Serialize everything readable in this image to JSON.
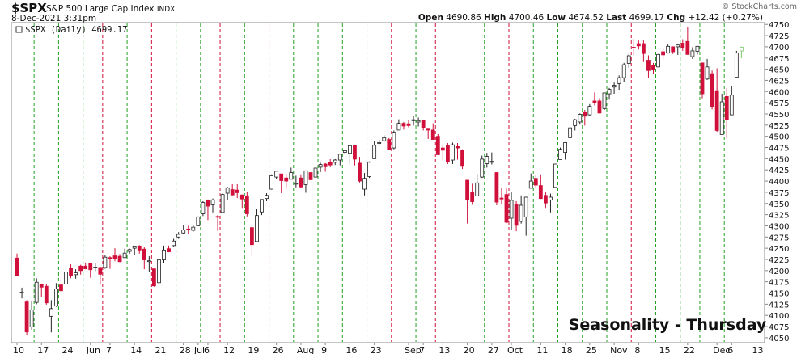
{
  "chart_data": {
    "type": "candlestick",
    "title": "$SPX",
    "subtitle": "S&P 500 Large Cap Index",
    "exchange": "INDX",
    "date": "8-Dec-2021 3:31pm",
    "credit": "© StockCharts.com",
    "quote_labels": {
      "open": "Open",
      "high": "High",
      "low": "Low",
      "last": "Last",
      "chg": "Chg"
    },
    "change": "+12.42 (+0.27%)",
    "legend_label": "$SPX (Daily)",
    "annotation": "Seasonality - Thursday",
    "annotation_color": "#1a1ad8",
    "up_color": "#ffffff",
    "down_color": "#d0103a",
    "last_color": "#7cc86a",
    "grid": false,
    "ylim": [
      4039,
      4754
    ],
    "yticks": [
      4050,
      4075,
      4100,
      4125,
      4150,
      4175,
      4200,
      4225,
      4250,
      4275,
      4300,
      4325,
      4350,
      4375,
      4400,
      4425,
      4450,
      4475,
      4500,
      4525,
      4550,
      4575,
      4600,
      4625,
      4650,
      4675,
      4700,
      4725,
      4750
    ],
    "categories": [
      "10",
      null,
      null,
      null,
      null,
      "17",
      null,
      null,
      null,
      null,
      "24",
      null,
      null,
      null,
      null,
      "Jun",
      null,
      null,
      null,
      "7",
      null,
      null,
      null,
      null,
      "14",
      null,
      null,
      null,
      null,
      "21",
      null,
      null,
      null,
      null,
      "28",
      null,
      null,
      "Jul",
      null,
      "6",
      null,
      null,
      null,
      "12",
      null,
      null,
      null,
      null,
      "19",
      null,
      null,
      null,
      null,
      "26",
      null,
      null,
      null,
      null,
      "Aug",
      null,
      null,
      null,
      null,
      "9",
      null,
      null,
      null,
      null,
      "16",
      null,
      null,
      null,
      null,
      "23",
      null,
      null,
      null,
      null,
      null,
      null,
      "Sep",
      null,
      null,
      "7",
      null,
      null,
      null,
      "13",
      null,
      null,
      null,
      null,
      "20",
      null,
      null,
      null,
      null,
      "27",
      null,
      null,
      null,
      "Oct",
      null,
      null,
      null,
      null,
      null,
      "11",
      null,
      null,
      null,
      null,
      "18",
      null,
      null,
      null,
      null,
      "25",
      null,
      null,
      null,
      null,
      "Nov",
      null,
      null,
      null,
      null,
      "8",
      null,
      null,
      null,
      null,
      "15",
      null,
      null,
      null,
      null,
      "22",
      null,
      null,
      null,
      null,
      null,
      "Dec",
      null,
      null,
      "6",
      null,
      null,
      null,
      null,
      "13"
    ],
    "open": [
      4228,
      4150,
      4130,
      4074,
      4129,
      4169,
      4165,
      4098,
      4121,
      4168,
      4170,
      4205,
      4191,
      4210,
      4210,
      4216,
      4207,
      4207,
      4207,
      4229,
      4233,
      4232,
      4229,
      4243,
      4250,
      4255,
      4248,
      4220,
      4204,
      4173,
      4224,
      4249,
      4256,
      4275,
      4284,
      4293,
      4290,
      4300,
      4327,
      4357,
      4347,
      4321,
      4330,
      4373,
      4381,
      4380,
      4369,
      4367,
      4296,
      4265,
      4331,
      4361,
      4382,
      4409,
      4416,
      4407,
      4404,
      4395,
      4407,
      4392,
      4419,
      4409,
      4431,
      4438,
      4442,
      4442,
      4447,
      4464,
      4462,
      4480,
      4440,
      4382,
      4410,
      4450,
      4484,
      4490,
      4493,
      4474,
      4514,
      4529,
      4528,
      4535,
      4532,
      4535,
      4518,
      4514,
      4500,
      4474,
      4479,
      4447,
      4477,
      4469,
      4402,
      4374,
      4367,
      4409,
      4439,
      4442,
      4419,
      4362,
      4370,
      4317,
      4348,
      4310,
      4320,
      4384,
      4406,
      4390,
      4368,
      4358,
      4386,
      4448,
      4464,
      4497,
      4524,
      4532,
      4553,
      4548,
      4579,
      4579,
      4562,
      4595,
      4610,
      4618,
      4631,
      4663,
      4699,
      4707,
      4707,
      4670,
      4659,
      4655,
      4689,
      4686,
      4700,
      4700,
      4708,
      4712,
      4678,
      4690,
      4664,
      4628,
      4640,
      4602,
      4504,
      4589,
      4548,
      4632,
      4690.86,
      null,
      null,
      null
    ],
    "high": [
      4238,
      4162,
      4134,
      4131,
      4183,
      4171,
      4170,
      4134,
      4172,
      4188,
      4209,
      4214,
      4203,
      4213,
      4218,
      4218,
      4216,
      4209,
      4234,
      4232,
      4250,
      4237,
      4249,
      4249,
      4255,
      4257,
      4252,
      4232,
      4204,
      4226,
      4256,
      4256,
      4271,
      4286,
      4301,
      4300,
      4302,
      4321,
      4355,
      4359,
      4361,
      4324,
      4372,
      4387,
      4393,
      4393,
      4370,
      4376,
      4301,
      4337,
      4359,
      4373,
      4415,
      4422,
      4416,
      4416,
      4430,
      4412,
      4415,
      4423,
      4420,
      4430,
      4441,
      4440,
      4449,
      4449,
      4461,
      4469,
      4480,
      4480,
      4454,
      4418,
      4444,
      4489,
      4493,
      4502,
      4496,
      4513,
      4538,
      4532,
      4537,
      4545,
      4542,
      4536,
      4518,
      4529,
      4505,
      4481,
      4485,
      4486,
      4485,
      4471,
      4402,
      4394,
      4416,
      4457,
      4463,
      4464,
      4420,
      4385,
      4383,
      4376,
      4355,
      4368,
      4365,
      4417,
      4413,
      4415,
      4375,
      4372,
      4439,
      4475,
      4487,
      4520,
      4539,
      4551,
      4559,
      4572,
      4598,
      4585,
      4598,
      4608,
      4620,
      4636,
      4664,
      4684,
      4718,
      4714,
      4714,
      4681,
      4664,
      4684,
      4697,
      4705,
      4701,
      4705,
      4717,
      4744,
      4699,
      4702,
      4664,
      4673,
      4647,
      4652,
      4595,
      4608,
      4613,
      4691,
      4700.46,
      null,
      null,
      null
    ],
    "low": [
      4187,
      4138,
      4056,
      4068,
      4125,
      4142,
      4124,
      4062,
      4119,
      4151,
      4170,
      4183,
      4182,
      4191,
      4203,
      4184,
      4199,
      4168,
      4204,
      4204,
      4221,
      4219,
      4228,
      4238,
      4235,
      4238,
      4203,
      4196,
      4164,
      4165,
      4217,
      4241,
      4254,
      4271,
      4283,
      4282,
      4287,
      4300,
      4322,
      4313,
      4330,
      4289,
      4330,
      4358,
      4368,
      4362,
      4340,
      4321,
      4233,
      4265,
      4324,
      4355,
      4381,
      4405,
      4373,
      4385,
      4404,
      4386,
      4384,
      4374,
      4402,
      4408,
      4420,
      4421,
      4431,
      4436,
      4435,
      4461,
      4437,
      4435,
      4397,
      4368,
      4407,
      4450,
      4482,
      4488,
      4469,
      4471,
      4514,
      4515,
      4520,
      4524,
      4522,
      4513,
      4494,
      4493,
      4458,
      4446,
      4438,
      4438,
      4448,
      4427,
      4305,
      4347,
      4367,
      4407,
      4430,
      4437,
      4346,
      4348,
      4306,
      4290,
      4288,
      4305,
      4278,
      4384,
      4386,
      4360,
      4340,
      4330,
      4386,
      4448,
      4448,
      4496,
      4513,
      4526,
      4524,
      4546,
      4569,
      4551,
      4559,
      4582,
      4595,
      4604,
      4621,
      4653,
      4681,
      4694,
      4666,
      4630,
      4640,
      4655,
      4672,
      4685,
      4684,
      4682,
      4691,
      4682,
      4673,
      4683,
      4585,
      4626,
      4560,
      4510,
      4504,
      4495,
      4547,
      4632,
      4674.52,
      null,
      null,
      null
    ],
    "close": [
      4188,
      4152,
      4063,
      4112,
      4174,
      4163,
      4128,
      4115,
      4159,
      4155,
      4197,
      4188,
      4195,
      4200,
      4204,
      4202,
      4208,
      4192,
      4230,
      4226,
      4227,
      4220,
      4239,
      4247,
      4255,
      4246,
      4224,
      4222,
      4166,
      4224,
      4246,
      4242,
      4266,
      4281,
      4291,
      4291,
      4297,
      4320,
      4352,
      4344,
      4358,
      4320,
      4370,
      4385,
      4369,
      4374,
      4360,
      4327,
      4258,
      4323,
      4359,
      4368,
      4412,
      4422,
      4401,
      4400,
      4419,
      4395,
      4387,
      4423,
      4403,
      4429,
      4437,
      4432,
      4436,
      4447,
      4460,
      4468,
      4479,
      4449,
      4400,
      4406,
      4442,
      4480,
      4486,
      4497,
      4470,
      4509,
      4529,
      4523,
      4524,
      4537,
      4535,
      4520,
      4514,
      4493,
      4459,
      4469,
      4443,
      4481,
      4474,
      4433,
      4358,
      4354,
      4396,
      4449,
      4455,
      4444,
      4353,
      4360,
      4308,
      4357,
      4301,
      4346,
      4364,
      4400,
      4391,
      4361,
      4351,
      4364,
      4438,
      4471,
      4486,
      4519,
      4537,
      4549,
      4545,
      4567,
      4575,
      4552,
      4597,
      4605,
      4614,
      4631,
      4660,
      4680,
      4697,
      4702,
      4685,
      4647,
      4650,
      4683,
      4682,
      4701,
      4689,
      4704,
      4698,
      4683,
      4691,
      4701,
      4595,
      4655,
      4567,
      4513,
      4577,
      4538,
      4592,
      4686,
      4699.17,
      null,
      null,
      null
    ],
    "thursday_lines": [
      {
        "at": 3,
        "color": "#22a022"
      },
      {
        "at": 8,
        "color": "#22a022"
      },
      {
        "at": 13,
        "color": "#22a022"
      },
      {
        "at": 17,
        "color": "#d0103a"
      },
      {
        "at": 22,
        "color": "#22a022"
      },
      {
        "at": 27,
        "color": "#d0103a"
      },
      {
        "at": 32,
        "color": "#22a022"
      },
      {
        "at": 37,
        "color": "#22a022"
      },
      {
        "at": 41,
        "color": "#d0103a"
      },
      {
        "at": 46,
        "color": "#22a022"
      },
      {
        "at": 51,
        "color": "#d0103a"
      },
      {
        "at": 56,
        "color": "#22a022"
      },
      {
        "at": 61,
        "color": "#22a022"
      },
      {
        "at": 66,
        "color": "#22a022"
      },
      {
        "at": 71,
        "color": "#22a022"
      },
      {
        "at": 76,
        "color": "#d0103a"
      },
      {
        "at": 81,
        "color": "#22a022"
      },
      {
        "at": 85,
        "color": "#d0103a"
      },
      {
        "at": 90,
        "color": "#d0103a"
      },
      {
        "at": 95,
        "color": "#22a022"
      },
      {
        "at": 100,
        "color": "#d0103a"
      },
      {
        "at": 105,
        "color": "#22a022"
      },
      {
        "at": 110,
        "color": "#22a022"
      },
      {
        "at": 115,
        "color": "#22a022"
      },
      {
        "at": 120,
        "color": "#22a022"
      },
      {
        "at": 125,
        "color": "#d0103a"
      },
      {
        "at": 130,
        "color": "#22a022"
      },
      {
        "at": 135,
        "color": "#22a022"
      },
      {
        "at": 139,
        "color": "#22a022"
      },
      {
        "at": 144,
        "color": "#22a022"
      }
    ]
  }
}
